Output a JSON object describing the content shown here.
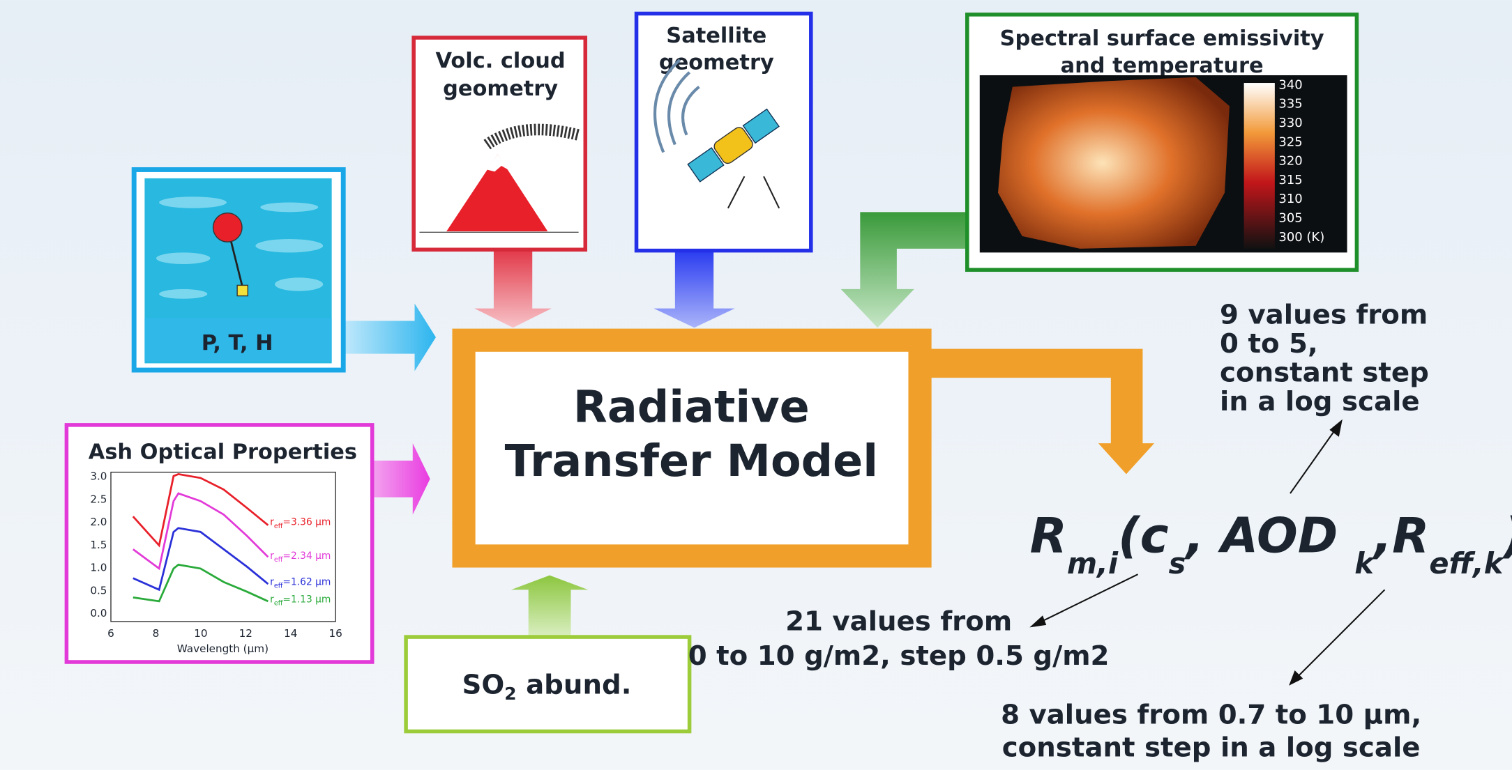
{
  "pth_box": {
    "label": "P, T, H"
  },
  "volcano_box": {
    "title_lines": [
      "Volc. cloud",
      "geometry"
    ]
  },
  "satellite_box": {
    "title_lines": [
      "Satellite",
      "geometry"
    ]
  },
  "surface_box": {
    "title_lines": [
      "Spectral surface emissivity",
      "and temperature"
    ],
    "colorbar_labels": [
      "340",
      "335",
      "330",
      "325",
      "320",
      "315",
      "310",
      "305",
      "300 (K)"
    ]
  },
  "ash_box": {
    "title": "Ash Optical Properties",
    "yticks": [
      "3.0",
      "2.5",
      "2.0",
      "1.5",
      "1.0",
      "0.5",
      "0.0"
    ],
    "xticks": [
      "6",
      "8",
      "10",
      "12",
      "14",
      "16"
    ],
    "xlabel": "Wavelength (μm)",
    "curves": [
      {
        "base": "r",
        "sub": "eff",
        "rest": "=3.36 μm"
      },
      {
        "base": "r",
        "sub": "eff",
        "rest": "=2.34 μm"
      },
      {
        "base": "r",
        "sub": "eff",
        "rest": "=1.62 μm"
      },
      {
        "base": "r",
        "sub": "eff",
        "rest": "=1.13 μm"
      }
    ]
  },
  "model_box": {
    "title_lines": [
      "Radiative",
      "Transfer Model"
    ]
  },
  "so2_box": {
    "base": "SO",
    "sub": "2",
    "rest": " abund."
  },
  "formula": {
    "parts": [
      {
        "text": "R",
        "sub": false
      },
      {
        "text": "m,i",
        "sub": true
      },
      {
        "text": "(c",
        "sub": false
      },
      {
        "text": "s",
        "sub": true
      },
      {
        "text": ", AOD ",
        "sub": false
      },
      {
        "text": "k",
        "sub": true
      },
      {
        "text": ",R",
        "sub": false
      },
      {
        "text": "eff,k",
        "sub": true
      },
      {
        "text": ")",
        "sub": false
      }
    ]
  },
  "annotations": {
    "aod": [
      "9 values from",
      "0 to 5,",
      "constant step",
      "in a log scale"
    ],
    "cs": [
      "21 values from",
      "0 to 10 g/m2, step 0.5 g/m2"
    ],
    "reff": [
      "8 values from 0.7 to 10 μm,",
      "constant step in a log scale"
    ]
  }
}
